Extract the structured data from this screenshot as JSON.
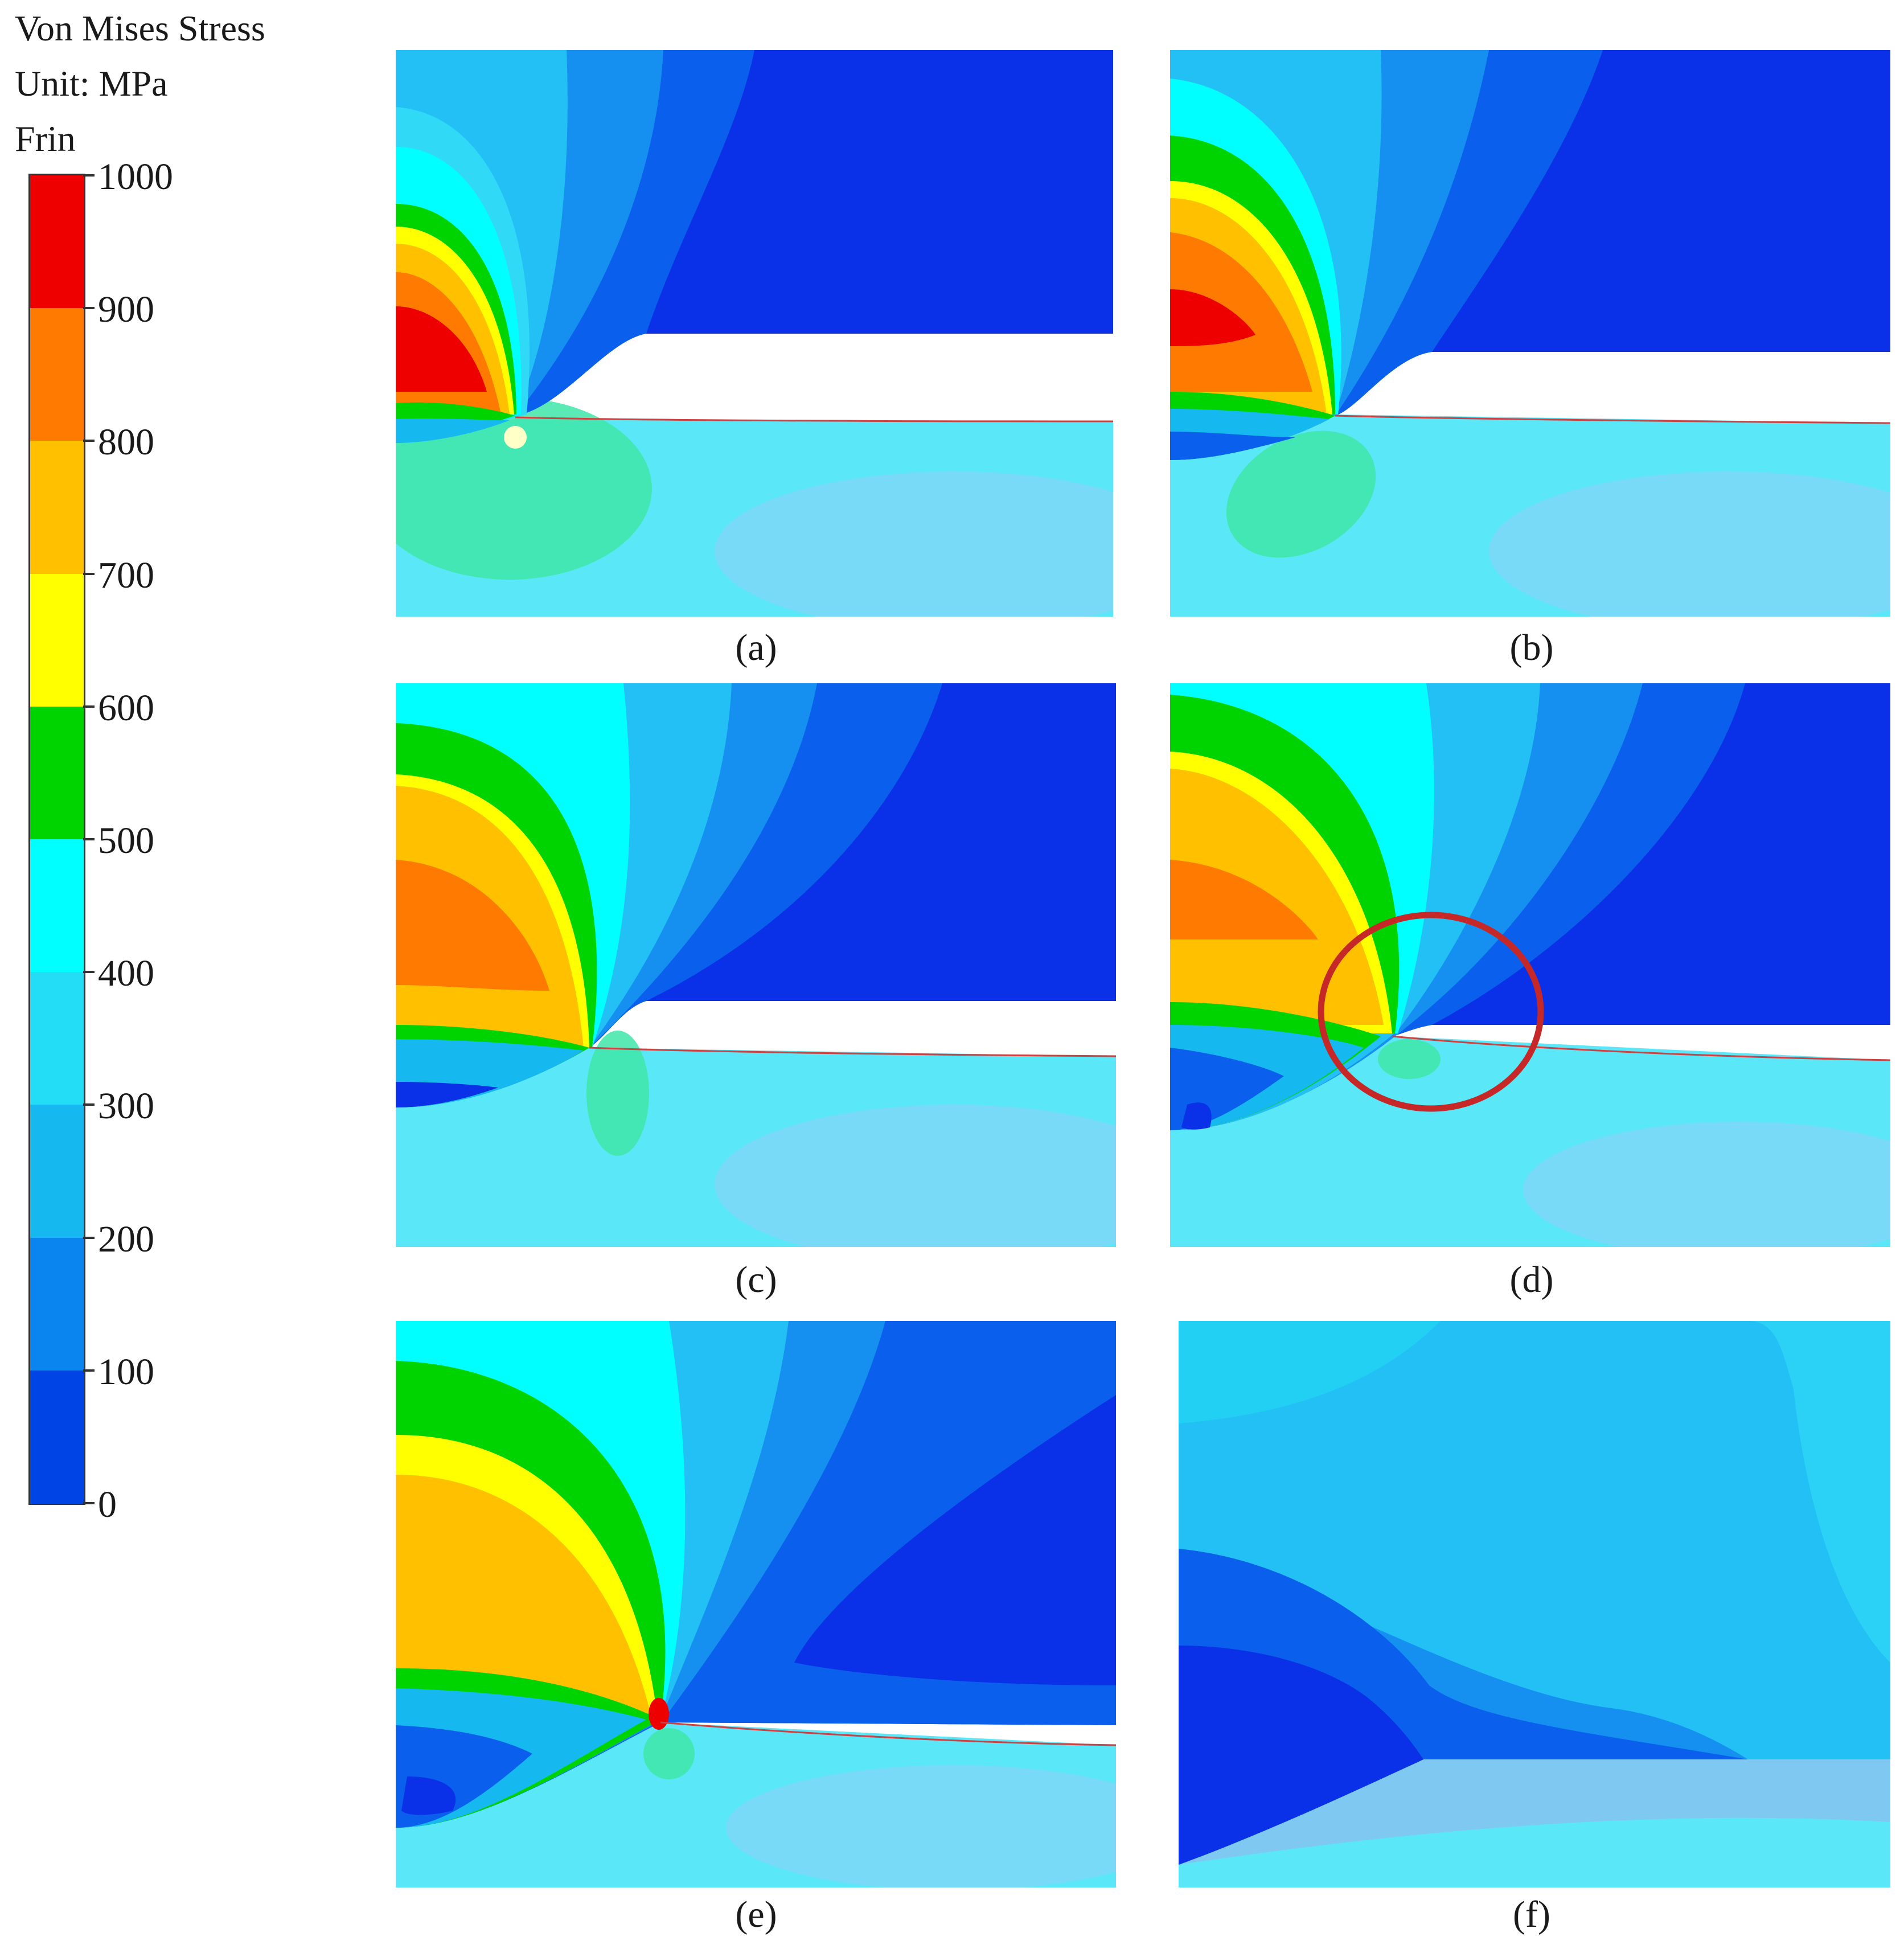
{
  "legend": {
    "title_line1": "Von Mises Stress",
    "title_line2": "Unit: MPa",
    "title_line3": "Frin",
    "ticks": [
      "1000",
      "900",
      "800",
      "700",
      "600",
      "500",
      "400",
      "300",
      "200",
      "100",
      "0"
    ],
    "band_colors": [
      "#ee0000",
      "#ff7a00",
      "#ffc000",
      "#ffff00",
      "#00d400",
      "#00ffff",
      "#22ddf5",
      "#16b8f0",
      "#0a84ee",
      "#0044e6"
    ]
  },
  "panels": [
    {
      "label": "(a)"
    },
    {
      "label": "(b)"
    },
    {
      "label": "(c)"
    },
    {
      "label": "(d)"
    },
    {
      "label": "(e)"
    },
    {
      "label": "(f)"
    }
  ]
}
